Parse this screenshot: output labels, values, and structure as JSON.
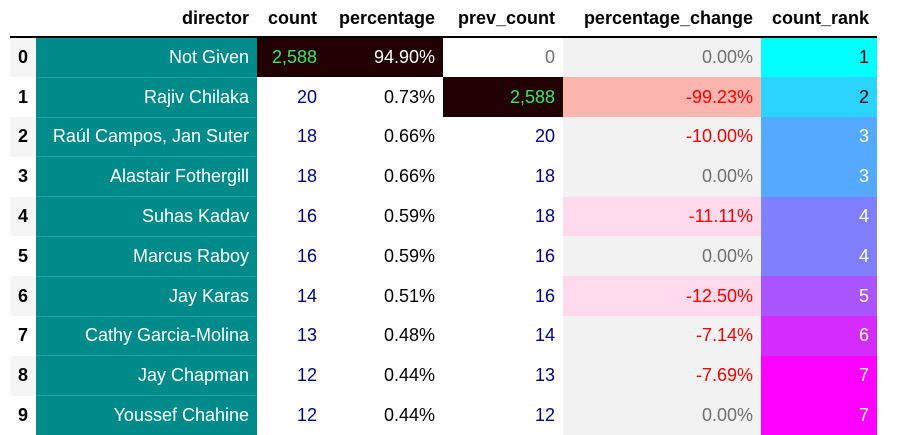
{
  "headers": {
    "index": "",
    "director": "director",
    "count": "count",
    "percentage": "percentage",
    "prev_count": "prev_count",
    "percentage_change": "percentage_change",
    "count_rank": "count_rank"
  },
  "colors": {
    "director_bg": "#008b8b",
    "highlight_max_bg": "#200000",
    "highlight_max_fg": "#39e85a",
    "navy_text": "#000080",
    "grey_text": "#707070",
    "red_text": "#ff0000",
    "pct_change_bg": "#f2f2f2",
    "pct_change_large_drop_bg": "#fbb4ae",
    "pct_change_drop_bg": "#fddaec"
  },
  "rows": [
    {
      "index": "0",
      "director": "Not Given",
      "count": "2,588",
      "percentage": "94.90%",
      "prev_count": "0",
      "percentage_change": "0.00%",
      "count_rank": "1",
      "rank_bg": "#00ffff"
    },
    {
      "index": "1",
      "director": "Rajiv Chilaka",
      "count": "20",
      "percentage": "0.73%",
      "prev_count": "2,588",
      "percentage_change": "-99.23%",
      "count_rank": "2",
      "rank_bg": "#2ad4ff"
    },
    {
      "index": "2",
      "director": "Raúl Campos, Jan Suter",
      "count": "18",
      "percentage": "0.66%",
      "prev_count": "20",
      "percentage_change": "-10.00%",
      "count_rank": "3",
      "rank_bg": "#55aaff"
    },
    {
      "index": "3",
      "director": "Alastair Fothergill",
      "count": "18",
      "percentage": "0.66%",
      "prev_count": "18",
      "percentage_change": "0.00%",
      "count_rank": "3",
      "rank_bg": "#55aaff"
    },
    {
      "index": "4",
      "director": "Suhas Kadav",
      "count": "16",
      "percentage": "0.59%",
      "prev_count": "18",
      "percentage_change": "-11.11%",
      "count_rank": "4",
      "rank_bg": "#8080ff"
    },
    {
      "index": "5",
      "director": "Marcus Raboy",
      "count": "16",
      "percentage": "0.59%",
      "prev_count": "16",
      "percentage_change": "0.00%",
      "count_rank": "4",
      "rank_bg": "#8080ff"
    },
    {
      "index": "6",
      "director": "Jay Karas",
      "count": "14",
      "percentage": "0.51%",
      "prev_count": "16",
      "percentage_change": "-12.50%",
      "count_rank": "5",
      "rank_bg": "#aa55ff"
    },
    {
      "index": "7",
      "director": "Cathy Garcia-Molina",
      "count": "13",
      "percentage": "0.48%",
      "prev_count": "14",
      "percentage_change": "-7.14%",
      "count_rank": "6",
      "rank_bg": "#d42bff"
    },
    {
      "index": "8",
      "director": "Jay Chapman",
      "count": "12",
      "percentage": "0.44%",
      "prev_count": "13",
      "percentage_change": "-7.69%",
      "count_rank": "7",
      "rank_bg": "#ff00ff"
    },
    {
      "index": "9",
      "director": "Youssef Chahine",
      "count": "12",
      "percentage": "0.44%",
      "prev_count": "12",
      "percentage_change": "0.00%",
      "count_rank": "7",
      "rank_bg": "#ff00ff"
    }
  ]
}
